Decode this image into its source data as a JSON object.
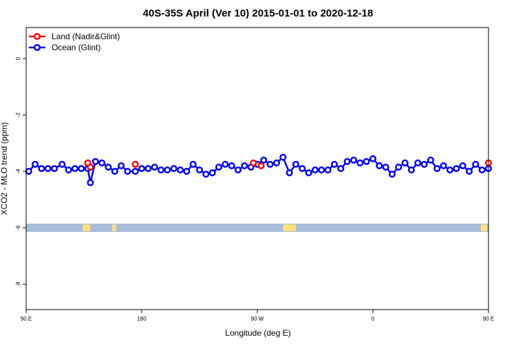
{
  "chart_data": {
    "type": "line",
    "title": "40S-35S April (Ver 10)   2015-01-01 to 2020-12-18",
    "xlabel": "Longitude (deg E)",
    "ylabel": "XCO2 - MLO trend (ppm)",
    "xlim": [
      90,
      450
    ],
    "ylim": [
      -8.9,
      1.1
    ],
    "x_ticks": [
      {
        "value": 90,
        "label": "90 E"
      },
      {
        "value": 180,
        "label": "180"
      },
      {
        "value": 270,
        "label": "90 W"
      },
      {
        "value": 360,
        "label": "0"
      },
      {
        "value": 450,
        "label": "90 E"
      },
      {
        "value": 540,
        "label": "180"
      }
    ],
    "y_ticks": [
      0,
      -2,
      -4,
      -6,
      -8
    ],
    "grid": false,
    "legend_position": "top-left",
    "series": [
      {
        "name": "Land (Nadir&Glint)",
        "color": "#ff0000",
        "x": [
          138,
          140,
          175,
          267,
          273,
          450,
          454,
          487
        ],
        "y": [
          -3.7,
          -3.85,
          -3.75,
          -3.7,
          -3.8,
          -3.7,
          -3.85,
          -3.75
        ]
      },
      {
        "name": "Ocean (Glint)",
        "color": "#0000ff",
        "x": [
          92,
          97,
          102,
          107,
          112,
          118,
          123,
          128,
          133,
          138,
          140,
          144,
          149,
          154,
          159,
          164,
          169,
          175,
          180,
          185,
          190,
          195,
          200,
          205,
          210,
          215,
          220,
          225,
          230,
          235,
          240,
          245,
          250,
          255,
          260,
          265,
          270,
          275,
          280,
          285,
          290,
          295,
          300,
          305,
          310,
          315,
          320,
          325,
          330,
          335,
          340,
          345,
          350,
          355,
          360,
          365,
          370,
          375,
          380,
          385,
          390,
          395,
          400,
          405,
          410,
          415,
          420,
          425,
          430,
          435,
          440,
          445,
          450,
          454,
          458,
          463,
          468,
          473,
          478,
          483,
          488
        ],
        "y": [
          -4.0,
          -3.75,
          -3.9,
          -3.9,
          -3.9,
          -3.75,
          -3.95,
          -3.9,
          -3.9,
          -3.9,
          -4.4,
          -3.65,
          -3.7,
          -3.85,
          -4.0,
          -3.8,
          -4.0,
          -4.0,
          -3.9,
          -3.9,
          -3.85,
          -3.95,
          -3.95,
          -3.9,
          -3.95,
          -4.0,
          -3.75,
          -3.95,
          -4.1,
          -4.05,
          -3.85,
          -3.75,
          -3.8,
          -3.95,
          -3.8,
          -3.85,
          -3.75,
          -3.6,
          -3.75,
          -3.7,
          -3.5,
          -4.05,
          -3.75,
          -3.9,
          -4.05,
          -3.95,
          -3.95,
          -3.95,
          -3.75,
          -3.9,
          -3.65,
          -3.6,
          -3.7,
          -3.65,
          -3.55,
          -3.8,
          -3.85,
          -4.1,
          -3.85,
          -3.7,
          -3.95,
          -3.7,
          -3.75,
          -3.6,
          -3.9,
          -3.8,
          -3.95,
          -3.9,
          -3.8,
          -4.0,
          -3.75,
          -3.95,
          -3.9,
          -4.4,
          -3.65,
          -3.7,
          -3.85,
          -4.0,
          -3.8,
          -4.0,
          -4.0
        ]
      }
    ],
    "land_strip": {
      "y_center": -6.0,
      "ocean_color": "#a6bddb",
      "land_color": "#ffe07a",
      "land_ranges": [
        [
          134,
          140
        ],
        [
          157,
          160
        ],
        [
          290,
          300
        ],
        [
          444,
          449
        ],
        [
          466,
          470
        ]
      ]
    }
  }
}
